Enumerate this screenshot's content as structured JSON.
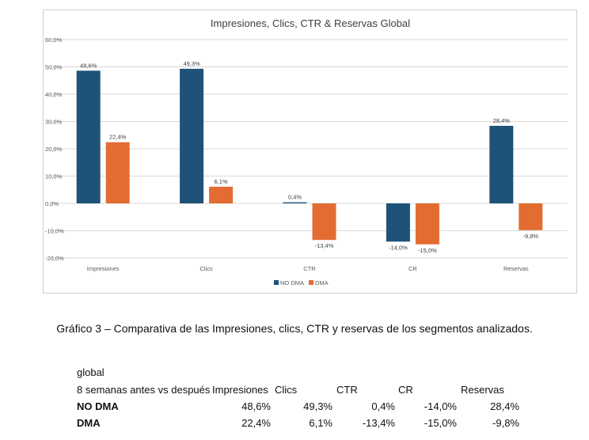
{
  "chart_data": {
    "type": "bar",
    "title": "Impresiones, Clics, CTR & Reservas Global",
    "categories": [
      "Impresiones",
      "Clics",
      "CTR",
      "CR",
      "Reservas"
    ],
    "series": [
      {
        "name": "NO DMA",
        "color": "#1f5278",
        "values": [
          48.6,
          49.3,
          0.4,
          -14.0,
          28.4
        ],
        "labels": [
          "48,6%",
          "49,3%",
          "0,4%",
          "-14,0%",
          "28,4%"
        ]
      },
      {
        "name": "DMA",
        "color": "#e36c33",
        "values": [
          22.4,
          6.1,
          -13.4,
          -15.0,
          -9.8
        ],
        "labels": [
          "22,4%",
          "6,1%",
          "-13,4%",
          "-15,0%",
          "-9,8%"
        ]
      }
    ],
    "ylim": [
      -20,
      60
    ],
    "yticks": [
      60,
      50,
      40,
      30,
      20,
      10,
      0,
      -10,
      -20
    ],
    "ytick_labels": [
      "60,0%",
      "50,0%",
      "40,0%",
      "30,0%",
      "20,0%",
      "10,0%",
      "0,0%",
      "-10,0%",
      "-20,0%"
    ],
    "grid": true,
    "legend_position": "bottom-center"
  },
  "caption": "Gráfico 3 – Comparativa de las Impresiones, clics, CTR y reservas de los segmentos analizados.",
  "table": {
    "title": "global",
    "header_label": "8 semanas antes vs después",
    "headers": [
      "Impresiones",
      "Clics",
      "CTR",
      "CR",
      "Reservas"
    ],
    "rows": [
      {
        "label": "NO DMA",
        "values": [
          "48,6%",
          "49,3%",
          "0,4%",
          "-14,0%",
          "28,4%"
        ]
      },
      {
        "label": "DMA",
        "values": [
          "22,4%",
          "6,1%",
          "-13,4%",
          "-15,0%",
          "-9,8%"
        ]
      }
    ]
  }
}
